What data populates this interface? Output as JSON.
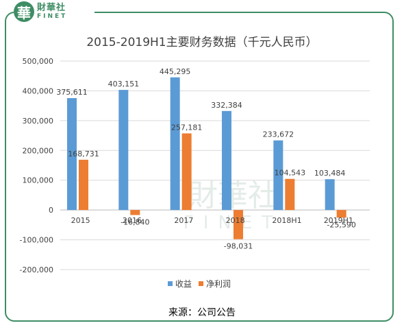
{
  "brand": {
    "name_cn": "財華社",
    "name_en": "FINET",
    "seal_char": "華"
  },
  "source_note": "来源：公司公告",
  "colors": {
    "frame": "#3e8d64",
    "revenue": "#5b9bd5",
    "net_profit": "#ed7d31",
    "gridline": "#d9d9d9",
    "axis_text": "#404040",
    "watermark": "#e4ece8"
  },
  "chart_data": {
    "type": "bar",
    "title": "2015-2019H1主要财务数据（千元人民币）",
    "categories": [
      "2015",
      "2016",
      "2017",
      "2018",
      "2018H1",
      "2019H1"
    ],
    "series": [
      {
        "name": "收益",
        "values": [
          375611,
          403151,
          445295,
          332384,
          233672,
          103484
        ],
        "labels": [
          "375,611",
          "403,151",
          "445,295",
          "332,384",
          "233,672",
          "103,484"
        ]
      },
      {
        "name": "净利润",
        "values": [
          168731,
          -16840,
          257181,
          -98031,
          104543,
          -25590
        ],
        "labels": [
          "168,731",
          "-16,840",
          "257,181",
          "-98,031",
          "104,543",
          "-25,590"
        ]
      }
    ],
    "y_ticks": [
      500000,
      400000,
      300000,
      200000,
      100000,
      0,
      -100000,
      -200000
    ],
    "y_tick_labels": [
      "500,000",
      "400,000",
      "300,000",
      "200,000",
      "100,000",
      "0",
      "-100,000",
      "-200,000"
    ],
    "ylim": [
      -200000,
      500000
    ],
    "grid": true,
    "legend_position": "bottom"
  }
}
